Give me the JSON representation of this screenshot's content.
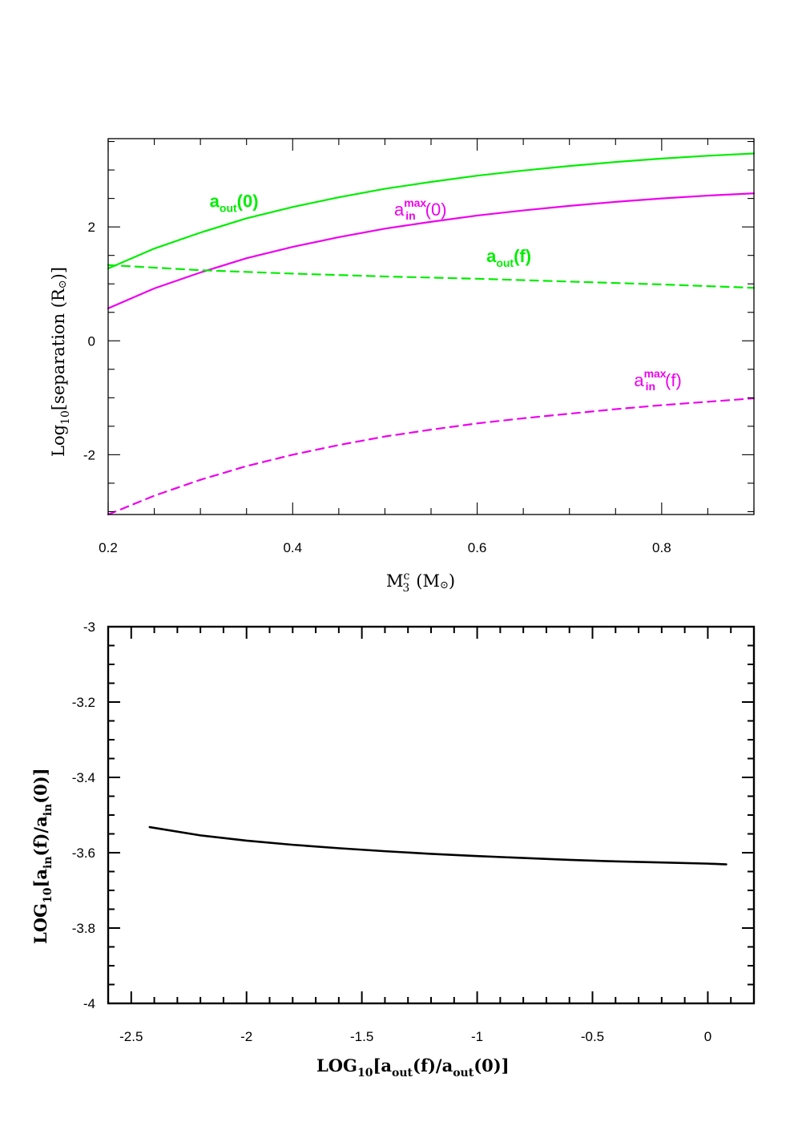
{
  "chart_data": [
    {
      "type": "line",
      "xlabel": "M",
      "xlabel_sup": "c",
      "xlabel_sub": "3",
      "xlabel_tail": "(M",
      "xlabel_end": ")",
      "ylabel": "Log",
      "ylabel_sub": "10",
      "ylabel_tail": "[separation (R",
      "ylabel_end": ")]",
      "xlim": [
        0.2,
        0.9
      ],
      "ylim": [
        -3.05,
        3.55
      ],
      "xticks": [
        "0.2",
        "0.4",
        "0.6",
        "0.8"
      ],
      "yticks": [
        "-2",
        "0",
        "2"
      ],
      "series": [
        {
          "name": "a_out(0)",
          "color": "#00ee00",
          "style": "solid",
          "x": [
            0.2,
            0.25,
            0.3,
            0.35,
            0.4,
            0.45,
            0.5,
            0.55,
            0.6,
            0.65,
            0.7,
            0.75,
            0.8,
            0.85,
            0.9
          ],
          "y": [
            1.27,
            1.62,
            1.9,
            2.15,
            2.35,
            2.52,
            2.67,
            2.79,
            2.9,
            2.99,
            3.07,
            3.14,
            3.2,
            3.25,
            3.29
          ]
        },
        {
          "name": "a_in^max(0)",
          "color": "#ee00ee",
          "style": "solid",
          "x": [
            0.2,
            0.25,
            0.3,
            0.35,
            0.4,
            0.45,
            0.5,
            0.55,
            0.6,
            0.65,
            0.7,
            0.75,
            0.8,
            0.85,
            0.9
          ],
          "y": [
            0.57,
            0.92,
            1.2,
            1.45,
            1.65,
            1.82,
            1.97,
            2.09,
            2.2,
            2.29,
            2.37,
            2.44,
            2.5,
            2.55,
            2.59
          ]
        },
        {
          "name": "a_out(f)",
          "color": "#00ee00",
          "style": "dashed",
          "x": [
            0.2,
            0.3,
            0.4,
            0.5,
            0.6,
            0.7,
            0.8,
            0.9
          ],
          "y": [
            1.33,
            1.24,
            1.18,
            1.13,
            1.09,
            1.04,
            0.99,
            0.93
          ]
        },
        {
          "name": "a_in^max(f)",
          "color": "#ee00ee",
          "style": "dashed",
          "x": [
            0.2,
            0.25,
            0.3,
            0.35,
            0.4,
            0.45,
            0.5,
            0.55,
            0.6,
            0.65,
            0.7,
            0.75,
            0.8,
            0.85,
            0.9
          ],
          "y": [
            -3.05,
            -2.72,
            -2.44,
            -2.2,
            -2.0,
            -1.83,
            -1.68,
            -1.56,
            -1.45,
            -1.36,
            -1.28,
            -1.2,
            -1.13,
            -1.07,
            -1.01
          ]
        }
      ],
      "annotations": [
        {
          "base": "a",
          "sub": "out",
          "tail": "(0)",
          "color": "#00ee00",
          "bold": true,
          "x": 0.31,
          "y": 2.35
        },
        {
          "base": "a",
          "sup": "max",
          "sub": "in",
          "tail": "(0)",
          "color": "#ee00ee",
          "bold": false,
          "x": 0.51,
          "y": 2.2
        },
        {
          "base": "a",
          "sub": "out",
          "tail": "(f)",
          "color": "#00ee00",
          "bold": true,
          "x": 0.61,
          "y": 1.38
        },
        {
          "base": "a",
          "sup": "max",
          "sub": "in",
          "tail": "(f)",
          "color": "#ee00ee",
          "bold": false,
          "x": 0.77,
          "y": -0.8
        }
      ]
    },
    {
      "type": "line",
      "xlabel": "LOG",
      "xlabel_sub": "10",
      "xlabel_tail": "[a",
      "xlabel_tail_sub": "out",
      "xlabel_mid": "(f)/a",
      "xlabel_mid_sub": "out",
      "xlabel_end": "(0)]",
      "ylabel": "LOG",
      "ylabel_sub": "10",
      "ylabel_tail": "[a",
      "ylabel_tail_sub": "in",
      "ylabel_mid": "(f)/a",
      "ylabel_mid_sub": "in",
      "ylabel_end": "(0)]",
      "xlim": [
        -2.6,
        0.2
      ],
      "ylim": [
        -4,
        -3
      ],
      "xticks": [
        "-2.5",
        "-2",
        "-1.5",
        "-1",
        "-0.5",
        "0"
      ],
      "yticks": [
        "-3",
        "-3.2",
        "-3.4",
        "-3.6",
        "-3.8",
        "-4"
      ],
      "series": [
        {
          "color": "#000000",
          "style": "solid",
          "x": [
            -2.42,
            -2.2,
            -2.0,
            -1.8,
            -1.6,
            -1.4,
            -1.2,
            -1.0,
            -0.8,
            -0.6,
            -0.4,
            -0.2,
            0.0,
            0.08
          ],
          "y": [
            -3.532,
            -3.554,
            -3.568,
            -3.579,
            -3.588,
            -3.596,
            -3.603,
            -3.609,
            -3.614,
            -3.619,
            -3.623,
            -3.626,
            -3.629,
            -3.631
          ]
        }
      ]
    }
  ]
}
